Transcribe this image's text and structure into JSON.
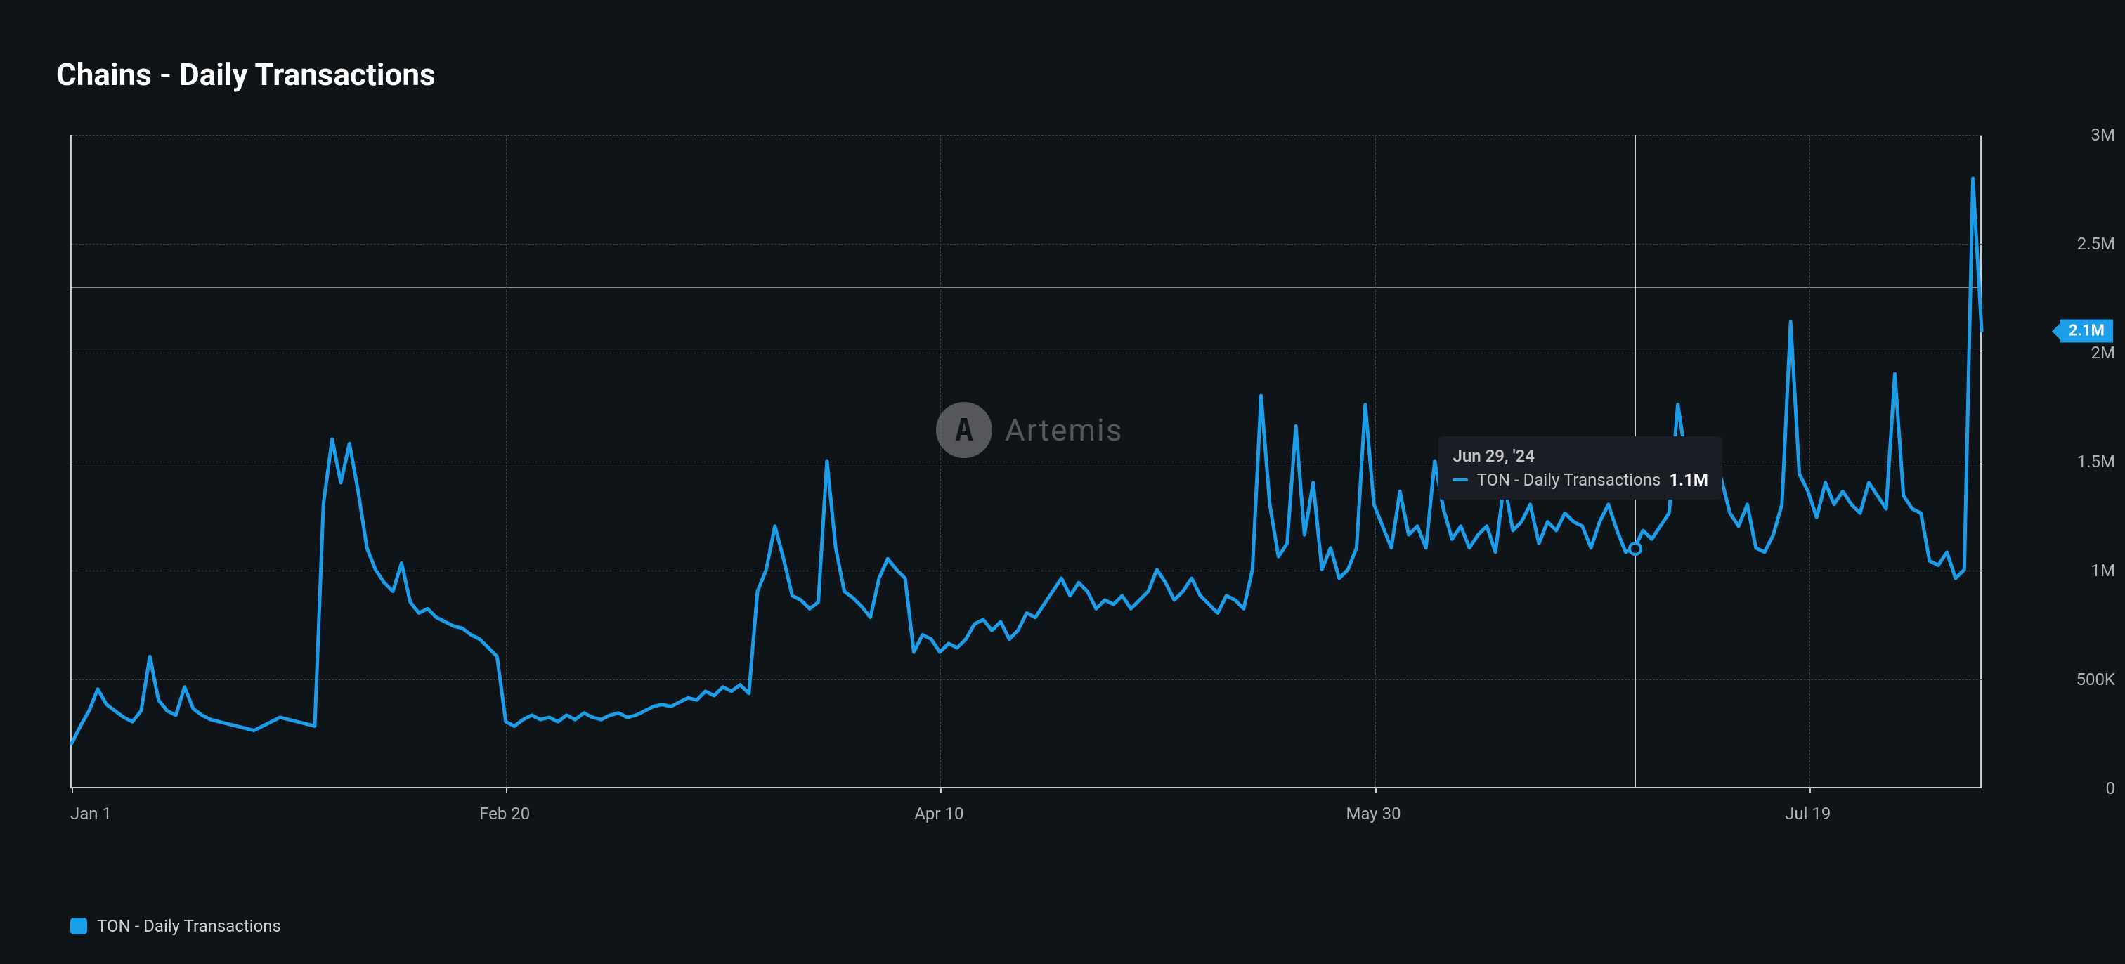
{
  "title": "Chains - Daily Transactions",
  "watermark": {
    "logo_glyph": "A",
    "text": "Artemis",
    "color": "#9a9a9a"
  },
  "chart": {
    "type": "line",
    "background_color": "#0f1419",
    "grid_color": "#3a3f4a",
    "axis_color": "#cccccc",
    "line_color": "#1c9dea",
    "line_width": 5,
    "x_axis": {
      "range_days": 220,
      "ticks": [
        {
          "pos": 0,
          "label": "Jan 1"
        },
        {
          "pos": 50,
          "label": "Feb 20"
        },
        {
          "pos": 100,
          "label": "Apr 10"
        },
        {
          "pos": 150,
          "label": "May 30"
        },
        {
          "pos": 200,
          "label": "Jul 19"
        }
      ],
      "label_fontsize": 24,
      "label_color": "#b0b0b0"
    },
    "y_axis": {
      "min": 0,
      "max": 3000000,
      "ticks": [
        {
          "v": 0,
          "label": "0"
        },
        {
          "v": 500000,
          "label": "500K"
        },
        {
          "v": 1000000,
          "label": "1M"
        },
        {
          "v": 1500000,
          "label": "1.5M"
        },
        {
          "v": 2000000,
          "label": "2M"
        },
        {
          "v": 2500000,
          "label": "2.5M"
        },
        {
          "v": 3000000,
          "label": "3M"
        }
      ],
      "highlight_line_v": 2300000,
      "label_fontsize": 24,
      "label_color": "#b0b0b0"
    },
    "series": [
      {
        "name": "TON - Daily Transactions",
        "color": "#1c9dea",
        "data": [
          200000,
          280000,
          350000,
          450000,
          380000,
          350000,
          320000,
          300000,
          350000,
          600000,
          400000,
          350000,
          330000,
          460000,
          360000,
          330000,
          310000,
          300000,
          290000,
          280000,
          270000,
          260000,
          280000,
          300000,
          320000,
          310000,
          300000,
          290000,
          280000,
          1300000,
          1600000,
          1400000,
          1580000,
          1360000,
          1100000,
          1000000,
          940000,
          900000,
          1030000,
          850000,
          800000,
          820000,
          780000,
          760000,
          740000,
          730000,
          700000,
          680000,
          640000,
          600000,
          300000,
          280000,
          310000,
          330000,
          310000,
          320000,
          300000,
          330000,
          310000,
          340000,
          320000,
          310000,
          330000,
          340000,
          320000,
          330000,
          350000,
          370000,
          380000,
          370000,
          390000,
          410000,
          400000,
          440000,
          420000,
          460000,
          440000,
          470000,
          430000,
          900000,
          1000000,
          1200000,
          1050000,
          880000,
          860000,
          820000,
          850000,
          1500000,
          1100000,
          900000,
          870000,
          830000,
          780000,
          960000,
          1050000,
          1000000,
          960000,
          620000,
          700000,
          680000,
          620000,
          660000,
          640000,
          680000,
          750000,
          770000,
          720000,
          760000,
          680000,
          720000,
          800000,
          780000,
          840000,
          900000,
          960000,
          880000,
          940000,
          900000,
          820000,
          860000,
          840000,
          880000,
          820000,
          860000,
          900000,
          1000000,
          940000,
          860000,
          900000,
          960000,
          880000,
          840000,
          800000,
          880000,
          860000,
          820000,
          1000000,
          1800000,
          1300000,
          1060000,
          1120000,
          1660000,
          1160000,
          1400000,
          1000000,
          1100000,
          960000,
          1000000,
          1100000,
          1760000,
          1300000,
          1200000,
          1100000,
          1360000,
          1160000,
          1200000,
          1100000,
          1500000,
          1280000,
          1140000,
          1200000,
          1100000,
          1160000,
          1200000,
          1080000,
          1400000,
          1180000,
          1220000,
          1300000,
          1120000,
          1220000,
          1180000,
          1260000,
          1220000,
          1200000,
          1100000,
          1220000,
          1300000,
          1180000,
          1080000,
          1100000,
          1180000,
          1140000,
          1200000,
          1260000,
          1760000,
          1500000,
          1400000,
          1340000,
          1500000,
          1420000,
          1260000,
          1200000,
          1300000,
          1100000,
          1080000,
          1160000,
          1300000,
          2140000,
          1440000,
          1360000,
          1240000,
          1400000,
          1300000,
          1360000,
          1300000,
          1260000,
          1400000,
          1340000,
          1280000,
          1900000,
          1340000,
          1280000,
          1260000,
          1040000,
          1020000,
          1080000,
          960000,
          1000000,
          2800000,
          2100000
        ]
      }
    ],
    "end_badge": {
      "value_label": "2.1M",
      "value": 2100000,
      "bg": "#1c9dea",
      "fg": "#ffffff"
    },
    "hover": {
      "x_index": 180,
      "y_value": 1100000,
      "date_label": "Jun 29, '24",
      "series_label": "TON - Daily Transactions",
      "value_label": "1.1M",
      "marker_border": "#1c9dea",
      "marker_fill": "#0f1419",
      "tooltip_bg": "#1a1d24"
    }
  },
  "legend": {
    "items": [
      {
        "label": "TON - Daily Transactions",
        "color": "#1c9dea"
      }
    ],
    "fontsize": 24,
    "color": "#d0d0d0"
  }
}
